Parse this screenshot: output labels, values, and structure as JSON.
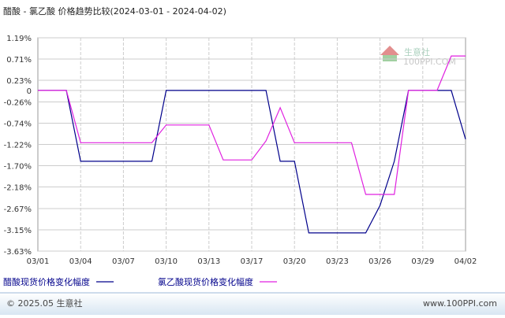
{
  "chart_data": {
    "type": "line",
    "title": "醋酸 - 氯乙酸 价格趋势比较(2024-03-01 - 2024-04-02)",
    "categories": [
      "03/01",
      null,
      null,
      "03/04",
      null,
      null,
      "03/07",
      null,
      null,
      "03/10",
      null,
      null,
      "03/13",
      null,
      null,
      "03/17",
      null,
      null,
      "03/20",
      null,
      null,
      "03/23",
      null,
      null,
      "03/26",
      null,
      null,
      "03/29",
      null,
      null,
      "04/02"
    ],
    "series": [
      {
        "name": "醋酸现货价格变化幅度",
        "color": "#00008b",
        "values": [
          0,
          0,
          0,
          -1.6,
          -1.6,
          -1.6,
          -1.6,
          -1.6,
          -1.6,
          0,
          0,
          0,
          0,
          0,
          0,
          0,
          0,
          -1.6,
          -1.6,
          -3.22,
          -3.22,
          -3.22,
          -3.22,
          -3.22,
          -2.6,
          -1.6,
          0,
          0,
          0,
          0,
          -1.1
        ]
      },
      {
        "name": "氯乙酸现货价格变化幅度",
        "color": "#e020e0",
        "values": [
          0,
          0,
          0,
          -1.18,
          -1.18,
          -1.18,
          -1.18,
          -1.18,
          -1.18,
          -0.78,
          -0.78,
          -0.78,
          -0.78,
          -1.57,
          -1.57,
          -1.57,
          -1.14,
          -0.39,
          -1.18,
          -1.18,
          -1.18,
          -1.18,
          -1.18,
          -2.35,
          -2.35,
          -2.35,
          0,
          0,
          0,
          0.78,
          0.78
        ]
      }
    ],
    "ylim": [
      -3.63,
      1.19
    ],
    "yticks": [
      {
        "value": 1.19,
        "label": "1.19%"
      },
      {
        "value": 0.71,
        "label": "0.71%"
      },
      {
        "value": 0.23,
        "label": "0.23%"
      },
      0,
      {
        "value": -0.26,
        "label": "-0.26%"
      },
      {
        "value": -0.74,
        "label": "-0.74%"
      },
      {
        "value": -1.22,
        "label": "-1.22%"
      },
      {
        "value": -1.7,
        "label": "-1.70%"
      },
      {
        "value": -2.18,
        "label": "-2.18%"
      },
      {
        "value": -2.67,
        "label": "-2.67%"
      },
      {
        "value": -3.15,
        "label": "-3.15%"
      },
      {
        "value": -3.63,
        "label": "-3.63%"
      }
    ],
    "grid": true,
    "watermark": "生意社",
    "watermark_url": "100PPI.COM",
    "footer_left": "© 2025.05 生意社",
    "footer_right": "www.100PPI.com"
  }
}
